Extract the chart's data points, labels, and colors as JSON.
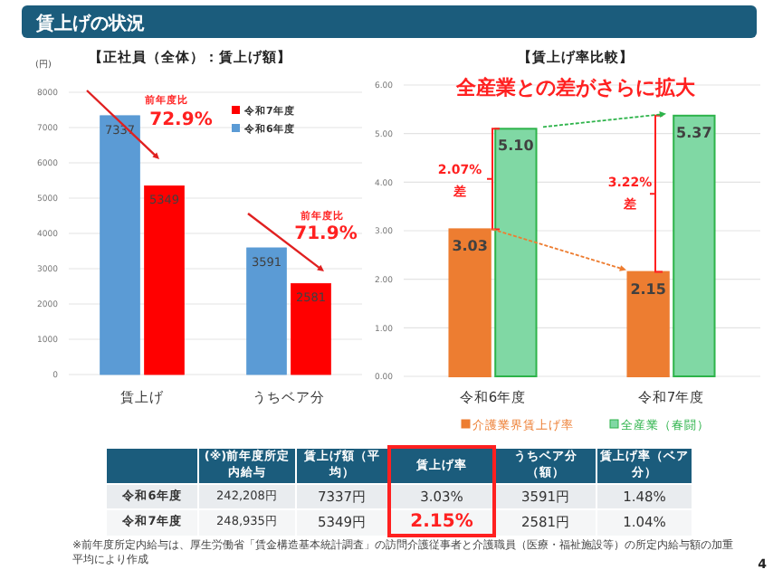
{
  "chart_data": [
    {
      "type": "bar",
      "title": "【正社員（全体）：賃上げ額】",
      "ylabel": "(円)",
      "categories": [
        "賃上げ",
        "うちベア分"
      ],
      "series": [
        {
          "name": "令和6年度",
          "color": "#5b9bd5",
          "values": [
            7337,
            3591
          ]
        },
        {
          "name": "令和7年度",
          "color": "#ff0000",
          "values": [
            5349,
            2581
          ]
        }
      ],
      "ylim": [
        0,
        8000
      ],
      "yticks": [
        0,
        1000,
        2000,
        3000,
        4000,
        5000,
        6000,
        7000,
        8000
      ],
      "grid": "y",
      "legend": "top right",
      "data_labels": true,
      "annotations": [
        "前年度比",
        "72.9%",
        "前年度比",
        "71.9%"
      ]
    },
    {
      "type": "bar",
      "title": "【賃上げ率比較】",
      "categories": [
        "令和6年度",
        "令和7年度"
      ],
      "series": [
        {
          "name": "介護業界賃上げ率",
          "color": "#ed7d31",
          "values": [
            3.03,
            2.15
          ],
          "value_labels": [
            "3.03",
            "2.15"
          ]
        },
        {
          "name": "全産業（春闘）",
          "color": "#80d8a4",
          "values": [
            5.1,
            5.37
          ],
          "value_labels": [
            "5.10",
            "5.37"
          ]
        }
      ],
      "ylim": [
        0,
        6
      ],
      "yticks": [
        {
          "value": 0,
          "label": "0.00"
        },
        {
          "value": 1,
          "label": "1.00"
        },
        {
          "value": 2,
          "label": "2.00"
        },
        {
          "value": 3,
          "label": "3.00"
        },
        {
          "value": 4,
          "label": "4.00"
        },
        {
          "value": 5,
          "label": "5.00"
        },
        {
          "value": 6,
          "label": "6.00"
        }
      ],
      "grid": "y",
      "legend": "bottom",
      "annotations": [
        "全産業との差がさらに拡大",
        "2.07%",
        "差",
        "3.22%",
        "差"
      ]
    },
    {
      "type": "other",
      "annotations": [
        "賃上げの状況",
        "(※)前年度所定内給与",
        "賃上げ額（平均）",
        "賃上げ率",
        "うちベア分（額）",
        "賃上げ率（ベア分）",
        "令和6年度",
        "242,208円",
        "7337円",
        "3.03%",
        "3591円",
        "1.48%",
        "令和7年度",
        "248,935円",
        "5349円",
        "2.15%",
        "2581円",
        "1.04%",
        "※前年度所定内給与は、厚生労働省「賃金構造基本統計調査」の訪問介護従事者と介護職員（医療・福祉施設等）の所定内給与額の加重平均により作成",
        "4"
      ]
    }
  ]
}
